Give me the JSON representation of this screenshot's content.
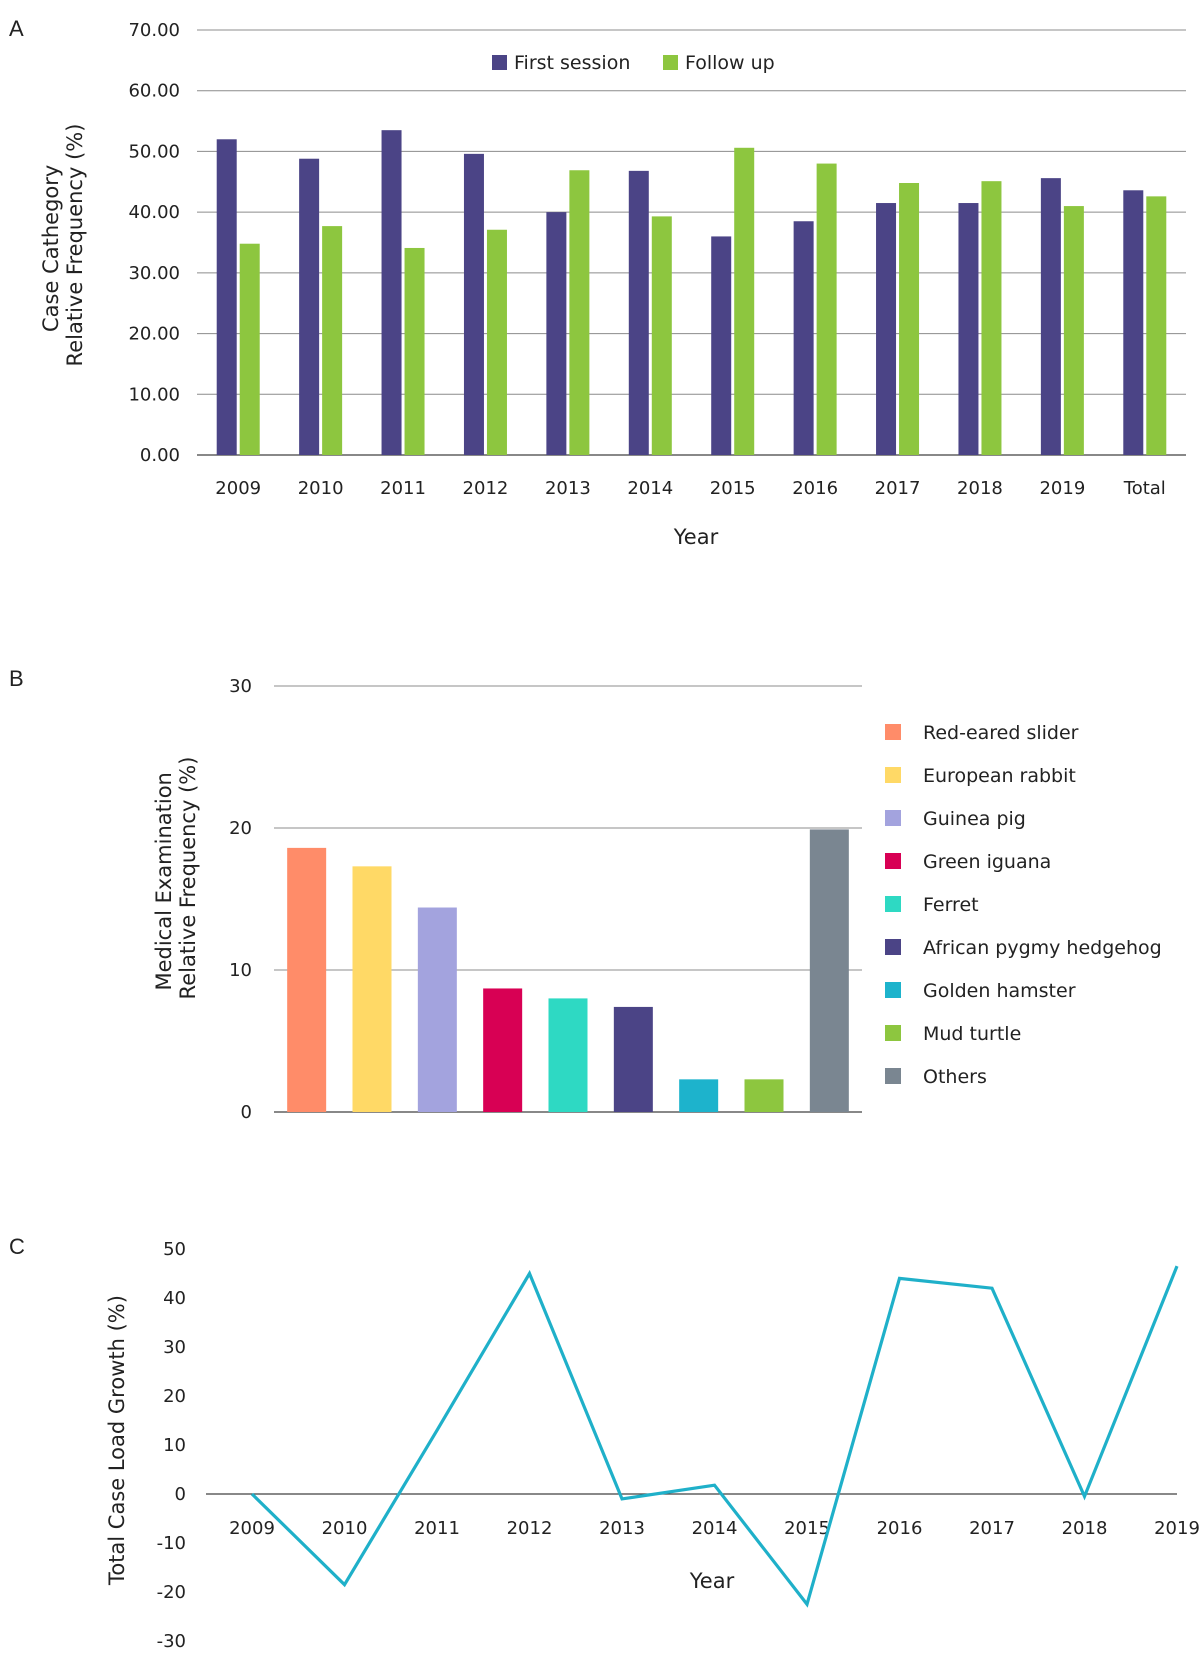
{
  "chart_data": [
    {
      "panel": "A",
      "type": "bar",
      "xlabel": "Year",
      "ylabel": "Case Cathegory Relative Frequency (%)",
      "ylim": [
        0,
        70
      ],
      "yticks": [
        "0.00",
        "10.00",
        "20.00",
        "30.00",
        "40.00",
        "50.00",
        "60.00",
        "70.00"
      ],
      "grid": true,
      "legend": "top",
      "categories": [
        "2009",
        "2010",
        "2011",
        "2012",
        "2013",
        "2014",
        "2015",
        "2016",
        "2017",
        "2018",
        "2019",
        "Total"
      ],
      "series": [
        {
          "name": "First session",
          "color": "#4b4486",
          "values": [
            52.0,
            48.8,
            53.5,
            49.6,
            40.0,
            46.8,
            36.0,
            38.5,
            41.5,
            41.5,
            45.6,
            43.6
          ]
        },
        {
          "name": "Follow up",
          "color": "#8dc63f",
          "values": [
            34.8,
            37.7,
            34.1,
            37.1,
            46.9,
            39.3,
            50.6,
            48.0,
            44.8,
            45.1,
            41.0,
            42.6
          ]
        }
      ]
    },
    {
      "panel": "B",
      "type": "bar",
      "xlabel": "",
      "ylabel": "Medical Examination Relative Frequency (%)",
      "ylim": [
        0,
        30
      ],
      "yticks": [
        "0",
        "10",
        "20",
        "30"
      ],
      "grid": true,
      "legend": "right",
      "categories": [
        "Red-eared slider",
        "European rabbit",
        "Guinea pig",
        "Green iguana",
        "Ferret",
        "African pygmy hedgehog",
        "Golden hamster",
        "Mud turtle",
        "Others"
      ],
      "values": [
        18.6,
        17.3,
        14.4,
        8.7,
        8.0,
        7.4,
        2.3,
        2.3,
        19.9
      ],
      "colors": [
        "#ff8c69",
        "#ffd966",
        "#a3a3de",
        "#d80054",
        "#2ed9c3",
        "#4b4486",
        "#1db3cc",
        "#8dc63f",
        "#7a8691"
      ]
    },
    {
      "panel": "C",
      "type": "line",
      "xlabel": "Year",
      "ylabel": "Total Case Load Growth (%)",
      "ylim": [
        -30,
        50
      ],
      "yticks": [
        "-30",
        "-20",
        "-10",
        "0",
        "10",
        "20",
        "30",
        "40",
        "50"
      ],
      "grid": false,
      "categories": [
        "2009",
        "2010",
        "2011",
        "2012",
        "2013",
        "2014",
        "2015",
        "2016",
        "2017",
        "2018",
        "2019"
      ],
      "series": [
        {
          "color": "#1fb0c9",
          "values": [
            0,
            -18.5,
            13,
            45,
            -1,
            1.8,
            -22.5,
            44,
            42,
            -0.5,
            46.5
          ]
        }
      ]
    }
  ]
}
